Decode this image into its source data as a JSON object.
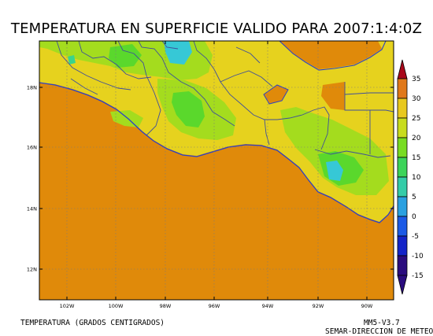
{
  "title": "TEMPERATURA EN SUPERFICIE VALIDO PARA 2007:1:4:0Z",
  "footer": {
    "variable_label": "TEMPERATURA (GRADOS CENTIGRADOS)",
    "model_label": "MM5-V3.7",
    "agency_label": "SEMAR-DIRECCION DE METEO"
  },
  "map": {
    "lon_labels": [
      "102W",
      "100W",
      "98W",
      "96W",
      "94W",
      "92W",
      "90W"
    ],
    "lat_labels": [
      "18N",
      "16N",
      "14N",
      "12N"
    ],
    "colors": {
      "ocean": "#e08a0a",
      "land_warm": "#e6d21e",
      "land_mild": "#a4dc1e",
      "land_cool": "#5ad82c",
      "land_cold": "#3ad48c",
      "land_coldest": "#36c8d6",
      "border": "#3f4f9a",
      "coast": "#2a40c8",
      "grid": "#7a7a7a"
    }
  },
  "colorbar": {
    "labels": [
      "35",
      "30",
      "25",
      "20",
      "15",
      "10",
      "5",
      "0",
      "-5",
      "-10",
      "-15"
    ],
    "colors": [
      "#a8081a",
      "#e0781a",
      "#e8c81e",
      "#c8dc1e",
      "#78dc22",
      "#3cd45a",
      "#34cca8",
      "#2aa0e0",
      "#1c5ae6",
      "#1424c8",
      "#2a0c7e"
    ]
  }
}
